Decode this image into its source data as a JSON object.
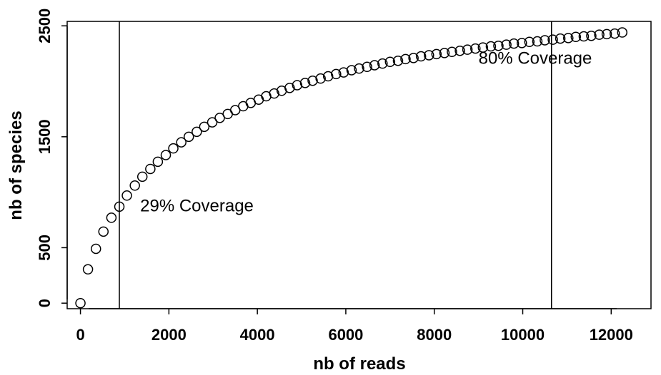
{
  "chart_data": {
    "type": "scatter",
    "xlabel": "nb of reads",
    "ylabel": "nb of species",
    "xlim": [
      -300,
      12900
    ],
    "ylim": [
      -50,
      2540
    ],
    "xticks": [
      0,
      2000,
      4000,
      6000,
      8000,
      10000,
      12000
    ],
    "xtick_labels": [
      "0",
      "2000",
      "4000",
      "6000",
      "8000",
      "10000",
      "12000"
    ],
    "yticks": [
      0,
      500,
      1500,
      2500
    ],
    "ytick_labels": [
      "0",
      "500",
      "1500",
      "2500"
    ],
    "grid": false,
    "marker": "open-circle",
    "x": [
      0,
      170,
      350,
      520,
      700,
      880,
      1050,
      1230,
      1400,
      1580,
      1750,
      1930,
      2100,
      2280,
      2450,
      2630,
      2800,
      2980,
      3150,
      3330,
      3500,
      3680,
      3850,
      4030,
      4200,
      4380,
      4550,
      4730,
      4900,
      5080,
      5250,
      5430,
      5600,
      5780,
      5950,
      6130,
      6300,
      6480,
      6650,
      6830,
      7000,
      7180,
      7350,
      7530,
      7700,
      7880,
      8050,
      8230,
      8400,
      8580,
      8750,
      8930,
      9100,
      9280,
      9450,
      9630,
      9800,
      9980,
      10150,
      10330,
      10500,
      10680,
      10850,
      11030,
      11200,
      11380,
      11550,
      11730,
      11900,
      12080,
      12250
    ],
    "y": [
      0,
      305,
      490,
      645,
      770,
      870,
      970,
      1060,
      1140,
      1210,
      1275,
      1335,
      1395,
      1450,
      1500,
      1545,
      1590,
      1630,
      1670,
      1705,
      1740,
      1775,
      1805,
      1835,
      1865,
      1890,
      1915,
      1940,
      1965,
      1985,
      2005,
      2025,
      2045,
      2065,
      2080,
      2100,
      2115,
      2130,
      2145,
      2160,
      2175,
      2185,
      2200,
      2210,
      2225,
      2235,
      2245,
      2255,
      2265,
      2275,
      2285,
      2295,
      2305,
      2315,
      2320,
      2330,
      2340,
      2345,
      2355,
      2360,
      2370,
      2375,
      2385,
      2390,
      2400,
      2405,
      2410,
      2420,
      2425,
      2430,
      2440
    ],
    "vlines": [
      880,
      10650
    ],
    "annotations": [
      {
        "text": "29% Coverage",
        "x": 1350,
        "y": 880
      },
      {
        "text": "80% Coverage",
        "x": 9000,
        "y": 2210
      }
    ],
    "colors": {
      "marker": "#000000",
      "axis": "#000000"
    }
  }
}
